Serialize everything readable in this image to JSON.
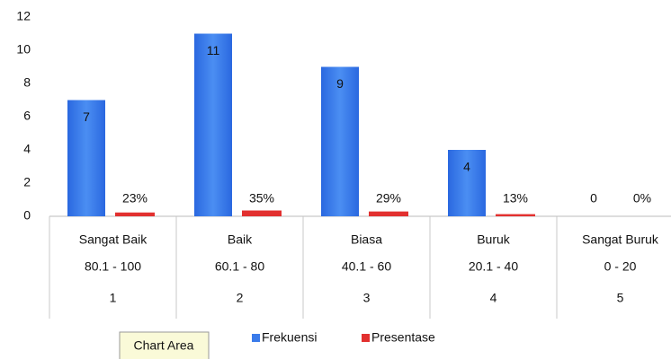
{
  "chart_data": {
    "type": "bar",
    "categories": [
      "Sangat Baik",
      "Baik",
      "Biasa",
      "Buruk",
      "Sangat Buruk"
    ],
    "categories_level2": [
      "80.1 - 100",
      "60.1 - 80",
      "40.1 - 60",
      "20.1 - 40",
      "0 - 20"
    ],
    "categories_level3": [
      "1",
      "2",
      "3",
      "4",
      "5"
    ],
    "series": [
      {
        "name": "Frekuensi",
        "color": "#3a7bea",
        "values": [
          7,
          11,
          9,
          4,
          0
        ]
      },
      {
        "name": "Presentase",
        "color": "#e2302f",
        "values": [
          0.23,
          0.35,
          0.29,
          0.13,
          0
        ],
        "value_labels": [
          "23%",
          "35%",
          "29%",
          "13%",
          "0%"
        ]
      }
    ],
    "ylim": [
      0,
      12
    ],
    "yticks": [
      0,
      2,
      4,
      6,
      8,
      10,
      12
    ],
    "grid": false,
    "legend": "bottom",
    "tooltip": "Chart Area"
  }
}
